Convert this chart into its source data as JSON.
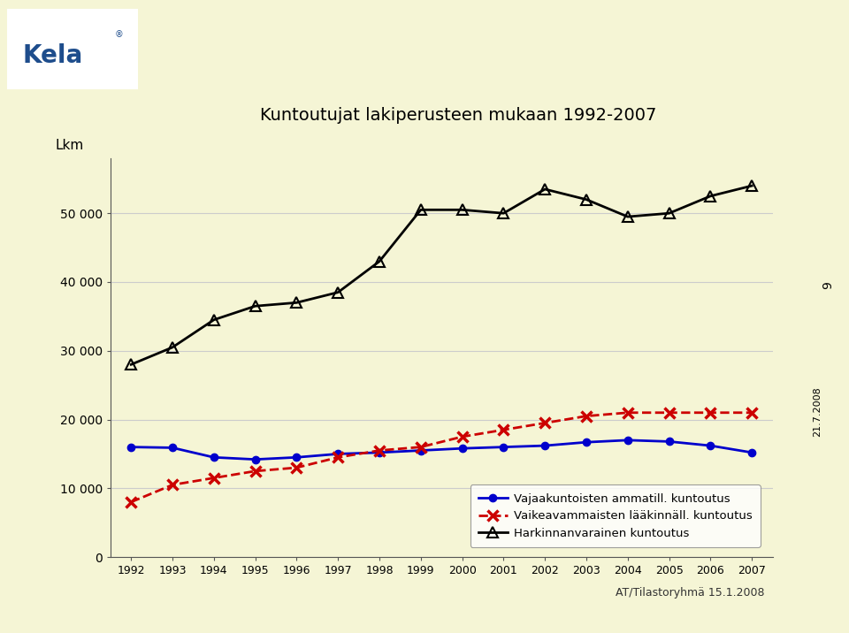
{
  "title": "Kuntoutujat lakiperusteen mukaan 1992-2007",
  "ylabel": "Lkm",
  "years": [
    1992,
    1993,
    1994,
    1995,
    1996,
    1997,
    1998,
    1999,
    2000,
    2001,
    2002,
    2003,
    2004,
    2005,
    2006,
    2007
  ],
  "vajaakuntoisten": [
    16000,
    15900,
    14500,
    14200,
    14500,
    15000,
    15200,
    15500,
    15800,
    16000,
    16200,
    16700,
    17000,
    16800,
    16200,
    15200
  ],
  "vaikeavammaisten": [
    8000,
    10500,
    11500,
    12500,
    13000,
    14500,
    15500,
    16000,
    17500,
    18500,
    19500,
    20500,
    21000,
    21000,
    21000,
    21000
  ],
  "harkinnanvarainen": [
    28000,
    30500,
    34500,
    36500,
    37000,
    38500,
    43000,
    50500,
    50500,
    50000,
    53500,
    52000,
    49500,
    50000,
    52500,
    54000
  ],
  "line1_color": "#0000cc",
  "line2_color": "#cc0000",
  "line3_color": "#000000",
  "bg_color": "#f5f5d5",
  "plot_bg_color": "#f5f5d5",
  "header_color": "#1e4d8c",
  "grid_color": "#cccccc",
  "ylim": [
    0,
    58000
  ],
  "yticks": [
    0,
    10000,
    20000,
    30000,
    40000,
    50000
  ],
  "ytick_labels": [
    "0",
    "10 000",
    "20 000",
    "30 000",
    "40 000",
    "50 000"
  ],
  "legend_labels": [
    "Vajaakuntoisten ammatill. kuntoutus",
    "Vaikeavammaisten lääkinnäll. kuntoutus",
    "Harkinnanvarainen kuntoutus"
  ],
  "footnote": "AT/Tilastoryhmä 15.1.2008",
  "slide_number": "9",
  "slide_date": "21.7.2008"
}
